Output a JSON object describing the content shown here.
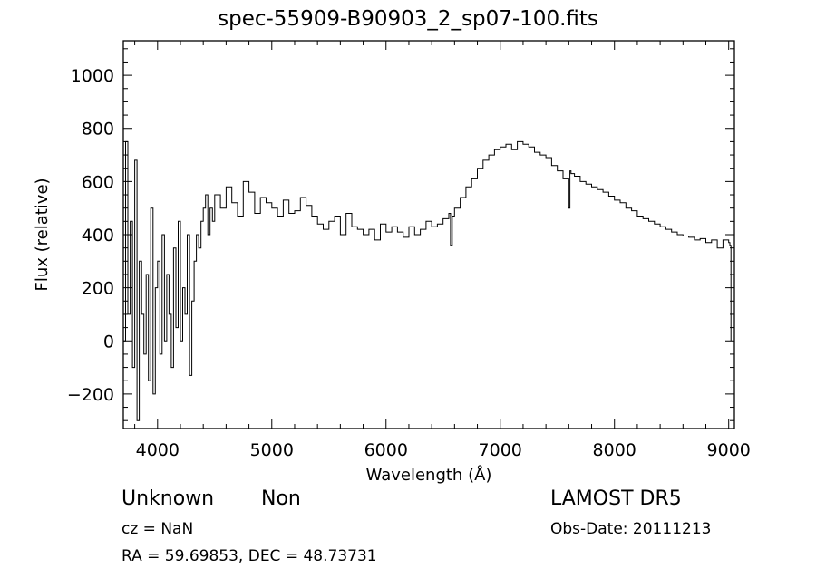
{
  "chart_data": {
    "type": "line",
    "title": "spec-55909-B90903_2_sp07-100.fits",
    "xlabel": "Wavelength (Å)",
    "ylabel": "Flux (relative)",
    "xlim": [
      3700,
      9050
    ],
    "ylim": [
      -330,
      1130
    ],
    "xticks": [
      4000,
      5000,
      6000,
      7000,
      8000,
      9000
    ],
    "yticks": [
      -200,
      0,
      200,
      400,
      600,
      800,
      1000
    ],
    "grid": false,
    "legend": "none",
    "series": [
      {
        "x": [
          3700,
          3720,
          3740,
          3760,
          3780,
          3800,
          3820,
          3840,
          3860,
          3880,
          3900,
          3920,
          3940,
          3960,
          3980,
          4000,
          4020,
          4040,
          4060,
          4080,
          4100,
          4120,
          4140,
          4160,
          4180,
          4200,
          4220,
          4240,
          4260,
          4280,
          4300,
          4320,
          4340,
          4360,
          4380,
          4400,
          4420,
          4440,
          4460,
          4480,
          4500,
          4550,
          4600,
          4650,
          4700,
          4750,
          4800,
          4850,
          4900,
          4950,
          5000,
          5050,
          5100,
          5150,
          5200,
          5250,
          5300,
          5350,
          5400,
          5450,
          5500,
          5550,
          5600,
          5650,
          5700,
          5750,
          5800,
          5850,
          5900,
          5950,
          6000,
          6050,
          6100,
          6150,
          6200,
          6250,
          6300,
          6350,
          6400,
          6450,
          6500,
          6550,
          6565,
          6580,
          6600,
          6650,
          6700,
          6750,
          6800,
          6850,
          6900,
          6950,
          7000,
          7050,
          7100,
          7150,
          7200,
          7250,
          7300,
          7350,
          7400,
          7450,
          7500,
          7550,
          7600,
          7610,
          7620,
          7650,
          7700,
          7750,
          7800,
          7850,
          7900,
          7950,
          8000,
          8050,
          8100,
          8150,
          8200,
          8250,
          8300,
          8350,
          8400,
          8450,
          8500,
          8550,
          8600,
          8650,
          8700,
          8750,
          8800,
          8850,
          8900,
          8950,
          9000,
          9010,
          9020
        ],
        "values": [
          0,
          750,
          100,
          450,
          -100,
          680,
          -300,
          300,
          100,
          -50,
          250,
          -150,
          500,
          -200,
          200,
          300,
          -50,
          400,
          0,
          250,
          100,
          -100,
          350,
          50,
          450,
          0,
          200,
          100,
          400,
          -130,
          150,
          300,
          400,
          350,
          450,
          500,
          550,
          400,
          500,
          450,
          550,
          500,
          580,
          520,
          470,
          600,
          560,
          480,
          540,
          520,
          500,
          470,
          530,
          480,
          490,
          540,
          510,
          470,
          440,
          420,
          450,
          470,
          400,
          480,
          430,
          420,
          400,
          420,
          380,
          440,
          410,
          430,
          410,
          390,
          430,
          400,
          420,
          450,
          430,
          440,
          460,
          480,
          360,
          470,
          500,
          540,
          580,
          610,
          650,
          680,
          700,
          720,
          730,
          740,
          720,
          750,
          740,
          730,
          710,
          700,
          690,
          660,
          640,
          610,
          500,
          640,
          630,
          620,
          600,
          590,
          580,
          570,
          560,
          545,
          530,
          520,
          500,
          490,
          470,
          460,
          450,
          440,
          430,
          420,
          410,
          400,
          395,
          390,
          380,
          385,
          370,
          380,
          350,
          380,
          370,
          360,
          0
        ],
        "units": "relative flux"
      }
    ]
  },
  "labels": {
    "object_class": "Unknown",
    "object_subclass": "Non",
    "survey": "LAMOST DR5",
    "cz": "cz = NaN",
    "obs_date": "Obs-Date: 20111213",
    "radec": "RA =  59.69853, DEC =  48.73731"
  }
}
